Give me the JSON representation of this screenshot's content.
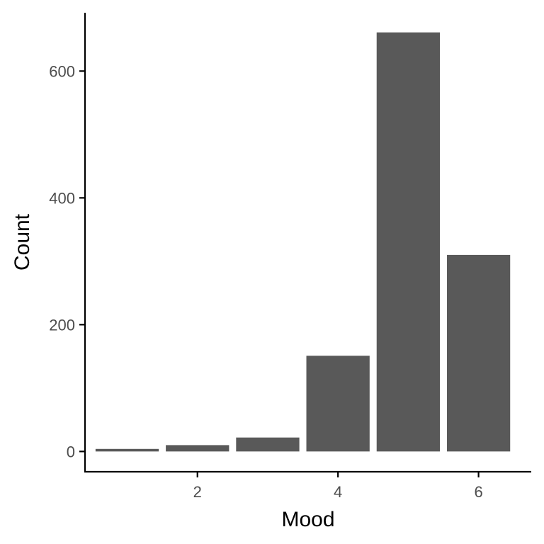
{
  "chart_data": {
    "type": "bar",
    "xlabel": "Mood",
    "ylabel": "Count",
    "x": [
      1,
      2,
      3,
      4,
      5,
      6
    ],
    "values": [
      4,
      10,
      22,
      151,
      661,
      310
    ],
    "xlim": [
      0.4,
      6.75
    ],
    "ylim": [
      -32,
      692
    ],
    "xticks": [
      2,
      4,
      6
    ],
    "yticks": [
      0,
      200,
      400,
      600
    ],
    "xtick_labels": [
      "2",
      "4",
      "6"
    ],
    "ytick_labels": [
      "0",
      "200",
      "400",
      "600"
    ],
    "grid": false,
    "legend": "none",
    "bar_color": "#595959"
  }
}
